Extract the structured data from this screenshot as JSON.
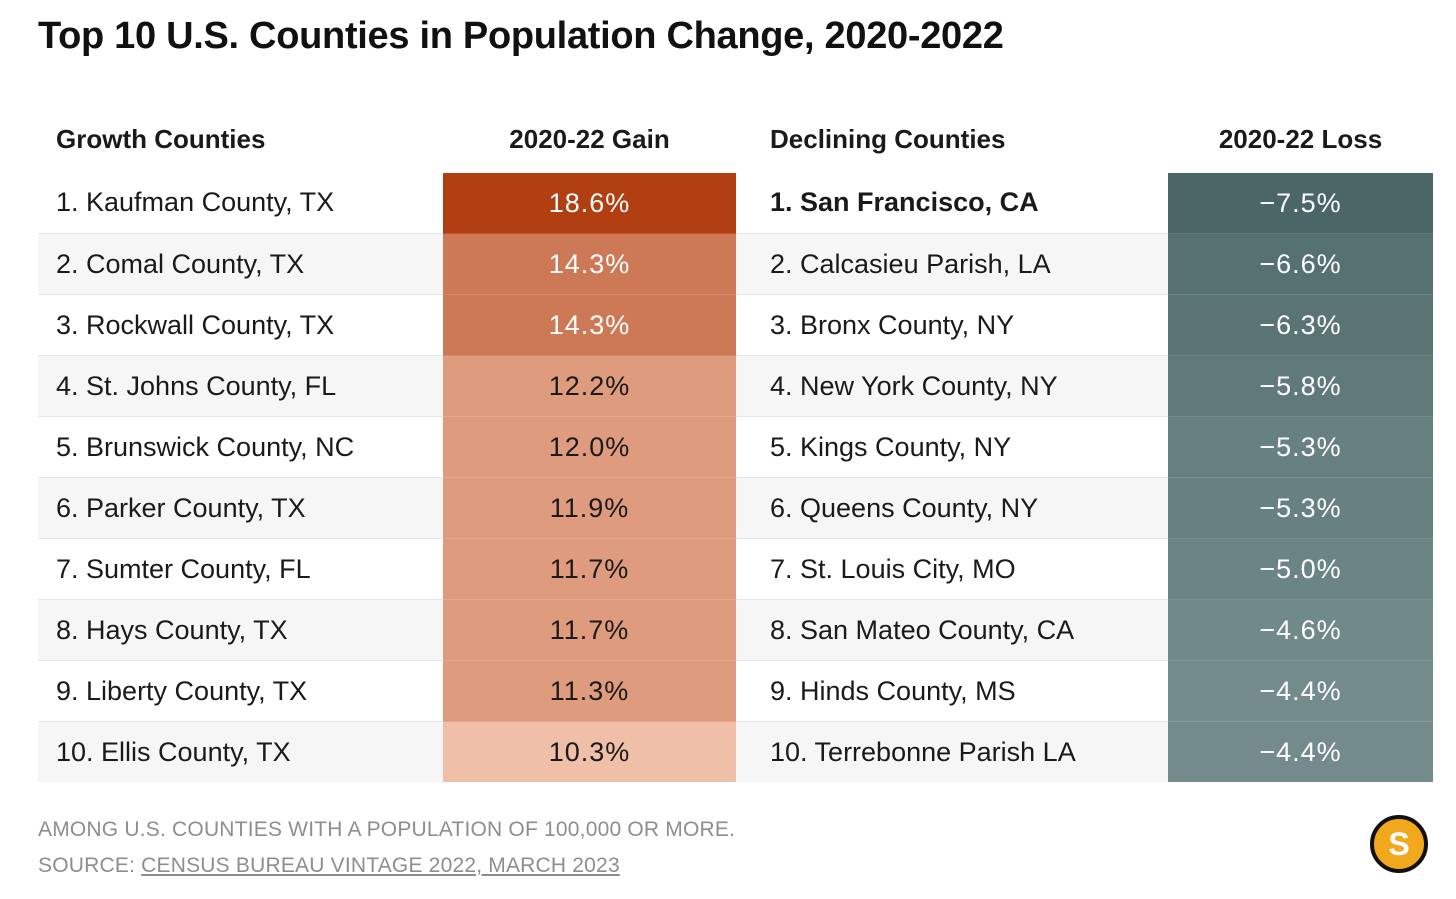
{
  "title": "Top 10 U.S. Counties in Population Change, 2020-2022",
  "headers": {
    "growth": "Growth Counties",
    "gain": "2020-22 Gain",
    "declining": "Declining Counties",
    "loss": "2020-22 Loss"
  },
  "footer": {
    "note": "AMONG U.S. COUNTIES WITH A POPULATION OF 100,000 OR MORE.",
    "source_prefix": "SOURCE: ",
    "source_link": "CENSUS BUREAU VINTAGE 2022, MARCH 2023"
  },
  "logo": {
    "letter": "S",
    "icon": "logo-s-icon",
    "color": "#f2a81d"
  },
  "colors": {
    "gain_scale": [
      "#f0bfa8",
      "#b23f12"
    ],
    "loss_scale": [
      "#738b8b",
      "#4a6666"
    ],
    "text_on_light": "#1a1a1a",
    "text_on_dark": "#ffffff"
  },
  "chart_data": {
    "type": "table",
    "title": "Top 10 U.S. Counties in Population Change, 2020-2022",
    "columns": [
      "Growth Counties",
      "2020-22 Gain",
      "Declining Counties",
      "2020-22 Loss"
    ],
    "rows": [
      {
        "growth": "1. Kaufman County, TX",
        "gain": 18.6,
        "gain_label": "18.6%",
        "decline": "1. San Francisco, CA",
        "loss": -7.5,
        "loss_label": "−7.5%"
      },
      {
        "growth": "2. Comal County, TX",
        "gain": 14.3,
        "gain_label": "14.3%",
        "decline": "2. Calcasieu Parish, LA",
        "loss": -6.6,
        "loss_label": "−6.6%"
      },
      {
        "growth": "3. Rockwall County, TX",
        "gain": 14.3,
        "gain_label": "14.3%",
        "decline": "3. Bronx County, NY",
        "loss": -6.3,
        "loss_label": "−6.3%"
      },
      {
        "growth": "4. St. Johns County, FL",
        "gain": 12.2,
        "gain_label": "12.2%",
        "decline": "4. New York County, NY",
        "loss": -5.8,
        "loss_label": "−5.8%"
      },
      {
        "growth": "5. Brunswick County, NC",
        "gain": 12.0,
        "gain_label": "12.0%",
        "decline": "5. Kings County, NY",
        "loss": -5.3,
        "loss_label": "−5.3%"
      },
      {
        "growth": "6. Parker County, TX",
        "gain": 11.9,
        "gain_label": "11.9%",
        "decline": "6. Queens County, NY",
        "loss": -5.3,
        "loss_label": "−5.3%"
      },
      {
        "growth": "7. Sumter County, FL",
        "gain": 11.7,
        "gain_label": "11.7%",
        "decline": "7. St. Louis City, MO",
        "loss": -5.0,
        "loss_label": "−5.0%"
      },
      {
        "growth": "8. Hays County, TX",
        "gain": 11.7,
        "gain_label": "11.7%",
        "decline": "8. San Mateo County, CA",
        "loss": -4.6,
        "loss_label": "−4.6%"
      },
      {
        "growth": "9. Liberty County, TX",
        "gain": 11.3,
        "gain_label": "11.3%",
        "decline": "9. Hinds County, MS",
        "loss": -4.4,
        "loss_label": "−4.4%"
      },
      {
        "growth": "10. Ellis County, TX",
        "gain": 10.3,
        "gain_label": "10.3%",
        "decline": "10. Terrebonne Parish LA",
        "loss": -4.4,
        "loss_label": "−4.4%"
      }
    ]
  }
}
